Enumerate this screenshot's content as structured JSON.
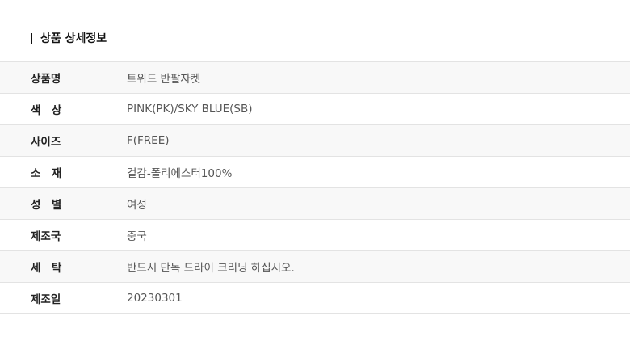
{
  "section_title": "상품 상세정보",
  "rows": [
    {
      "label": "상품명",
      "value": "트위드 반팔자켓"
    },
    {
      "label": "색　상",
      "value": "PINK(PK)/SKY BLUE(SB)"
    },
    {
      "label": "사이즈",
      "value": "F(FREE)"
    },
    {
      "label": "소　재",
      "value": "겉감-폴리에스터100%"
    },
    {
      "label": "성　별",
      "value": "여성"
    },
    {
      "label": "제조국",
      "value": "중국"
    },
    {
      "label": "세　탁",
      "value": "반드시 단독 드라이 크리닝 하십시오."
    },
    {
      "label": "제조일",
      "value": "20230301"
    }
  ]
}
